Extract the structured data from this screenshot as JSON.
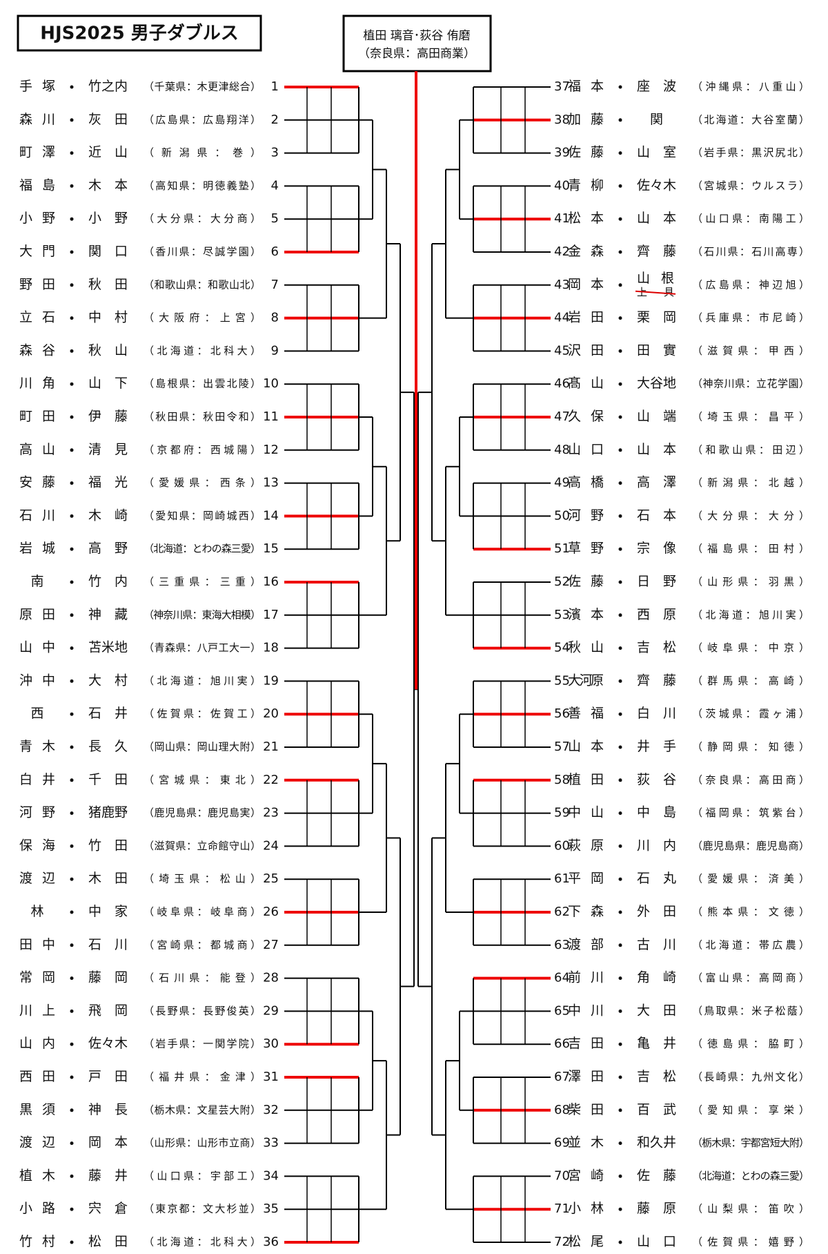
{
  "header": {
    "title": "HJS2025 男子ダブルス"
  },
  "champion": {
    "names": "植田 璃音･荻谷 侑磨",
    "affiliation": "（奈良県：高田商業）"
  },
  "entries": [
    {
      "no": 1,
      "family": "手塚",
      "given": "竹之内",
      "affiliation": "（千葉県：木更津総合）"
    },
    {
      "no": 2,
      "family": "森川",
      "given": "灰田",
      "affiliation": "（広島県：広島翔洋）"
    },
    {
      "no": 3,
      "family": "町澤",
      "given": "近山",
      "affiliation": "（新潟県：巻）"
    },
    {
      "no": 4,
      "family": "福島",
      "given": "木本",
      "affiliation": "（高知県：明徳義塾）"
    },
    {
      "no": 5,
      "family": "小野",
      "given": "小野",
      "affiliation": "（大分県：大分商）"
    },
    {
      "no": 6,
      "family": "大門",
      "given": "関口",
      "affiliation": "（香川県：尽誠学園）"
    },
    {
      "no": 7,
      "family": "野田",
      "given": "秋田",
      "affiliation": "（和歌山県：和歌山北）"
    },
    {
      "no": 8,
      "family": "立石",
      "given": "中村",
      "affiliation": "（大阪府：上宮）"
    },
    {
      "no": 9,
      "family": "森谷",
      "given": "秋山",
      "affiliation": "（北海道：北科大）"
    },
    {
      "no": 10,
      "family": "川角",
      "given": "山下",
      "affiliation": "（島根県：出雲北陵）"
    },
    {
      "no": 11,
      "family": "町田",
      "given": "伊藤",
      "affiliation": "（秋田県：秋田令和）"
    },
    {
      "no": 12,
      "family": "高山",
      "given": "清見",
      "affiliation": "（京都府：西城陽）"
    },
    {
      "no": 13,
      "family": "安藤",
      "given": "福光",
      "affiliation": "（愛媛県：西条）"
    },
    {
      "no": 14,
      "family": "石川",
      "given": "木崎",
      "affiliation": "（愛知県：岡崎城西）"
    },
    {
      "no": 15,
      "family": "岩城",
      "given": "高野",
      "affiliation": "（北海道：とわの森三愛）"
    },
    {
      "no": 16,
      "family": "南",
      "given": "竹内",
      "affiliation": "（三重県：三重）"
    },
    {
      "no": 17,
      "family": "原田",
      "given": "神藏",
      "affiliation": "（神奈川県：東海大相模）"
    },
    {
      "no": 18,
      "family": "山中",
      "given": "苫米地",
      "affiliation": "（青森県：八戸工大一）"
    },
    {
      "no": 19,
      "family": "沖中",
      "given": "大村",
      "affiliation": "（北海道：旭川実）"
    },
    {
      "no": 20,
      "family": "西",
      "given": "石井",
      "affiliation": "（佐賀県：佐賀工）"
    },
    {
      "no": 21,
      "family": "青木",
      "given": "長久",
      "affiliation": "（岡山県：岡山理大附）"
    },
    {
      "no": 22,
      "family": "白井",
      "given": "千田",
      "affiliation": "（宮城県：東北）"
    },
    {
      "no": 23,
      "family": "河野",
      "given": "猪鹿野",
      "affiliation": "（鹿児島県：鹿児島実）"
    },
    {
      "no": 24,
      "family": "保海",
      "given": "竹田",
      "affiliation": "（滋賀県：立命館守山）"
    },
    {
      "no": 25,
      "family": "渡辺",
      "given": "木田",
      "affiliation": "（埼玉県：松山）"
    },
    {
      "no": 26,
      "family": "林",
      "given": "中家",
      "affiliation": "（岐阜県：岐阜商）"
    },
    {
      "no": 27,
      "family": "田中",
      "given": "石川",
      "affiliation": "（宮崎県：都城商）"
    },
    {
      "no": 28,
      "family": "常岡",
      "given": "藤岡",
      "affiliation": "（石川県：能登）"
    },
    {
      "no": 29,
      "family": "川上",
      "given": "飛岡",
      "affiliation": "（長野県：長野俊英）"
    },
    {
      "no": 30,
      "family": "山内",
      "given": "佐々木",
      "affiliation": "（岩手県：一関学院）"
    },
    {
      "no": 31,
      "family": "西田",
      "given": "戸田",
      "affiliation": "（福井県：金津）"
    },
    {
      "no": 32,
      "family": "黒須",
      "given": "神長",
      "affiliation": "（栃木県：文星芸大附）"
    },
    {
      "no": 33,
      "family": "渡辺",
      "given": "岡本",
      "affiliation": "（山形県：山形市立商）"
    },
    {
      "no": 34,
      "family": "植木",
      "given": "藤井",
      "affiliation": "（山口県：宇部工）"
    },
    {
      "no": 35,
      "family": "小路",
      "given": "宍倉",
      "affiliation": "（東京都：文大杉並）"
    },
    {
      "no": 36,
      "family": "竹村",
      "given": "松田",
      "affiliation": "（北海道：北科大）"
    },
    {
      "no": 37,
      "family": "福本",
      "given": "座波",
      "affiliation": "（沖縄県：八重山）"
    },
    {
      "no": 38,
      "family": "加藤",
      "given": "関",
      "affiliation": "（北海道：大谷室蘭）"
    },
    {
      "no": 39,
      "family": "佐藤",
      "given": "山室",
      "affiliation": "（岩手県：黒沢尻北）"
    },
    {
      "no": 40,
      "family": "青柳",
      "given": "佐々木",
      "affiliation": "（宮城県：ウルスラ）"
    },
    {
      "no": 41,
      "family": "松本",
      "given": "山本",
      "affiliation": "（山口県：南陽工）"
    },
    {
      "no": 42,
      "family": "金森",
      "given": "齊藤",
      "affiliation": "（石川県：石川高専）"
    },
    {
      "no": 43,
      "family": "岡本",
      "given": "山根",
      "struck": "上具",
      "affiliation": "（広島県：神辺旭）"
    },
    {
      "no": 44,
      "family": "岩田",
      "given": "栗岡",
      "affiliation": "（兵庫県：市尼崎）"
    },
    {
      "no": 45,
      "family": "沢田",
      "given": "田實",
      "affiliation": "（滋賀県：甲西）"
    },
    {
      "no": 46,
      "family": "髙山",
      "given": "大谷地",
      "affiliation": "（神奈川県：立花学園）"
    },
    {
      "no": 47,
      "family": "久保",
      "given": "山端",
      "affiliation": "（埼玉県：昌平）"
    },
    {
      "no": 48,
      "family": "山口",
      "given": "山本",
      "affiliation": "（和歌山県：田辺）"
    },
    {
      "no": 49,
      "family": "高橋",
      "given": "高澤",
      "affiliation": "（新潟県：北越）"
    },
    {
      "no": 50,
      "family": "河野",
      "given": "石本",
      "affiliation": "（大分県：大分）"
    },
    {
      "no": 51,
      "family": "草野",
      "given": "宗像",
      "affiliation": "（福島県：田村）"
    },
    {
      "no": 52,
      "family": "佐藤",
      "given": "日野",
      "affiliation": "（山形県：羽黒）"
    },
    {
      "no": 53,
      "family": "濱本",
      "given": "西原",
      "affiliation": "（北海道：旭川実）"
    },
    {
      "no": 54,
      "family": "秋山",
      "given": "吉松",
      "affiliation": "（岐阜県：中京）"
    },
    {
      "no": 55,
      "family": "大河原",
      "given": "齊藤",
      "affiliation": "（群馬県：高崎）"
    },
    {
      "no": 56,
      "family": "善福",
      "given": "白川",
      "affiliation": "（茨城県：霞ヶ浦）"
    },
    {
      "no": 57,
      "family": "山本",
      "given": "井手",
      "affiliation": "（静岡県：知徳）"
    },
    {
      "no": 58,
      "family": "植田",
      "given": "荻谷",
      "affiliation": "（奈良県：高田商）"
    },
    {
      "no": 59,
      "family": "中山",
      "given": "中島",
      "affiliation": "（福岡県：筑紫台）"
    },
    {
      "no": 60,
      "family": "萩原",
      "given": "川内",
      "affiliation": "（鹿児島県：鹿児島商）"
    },
    {
      "no": 61,
      "family": "平岡",
      "given": "石丸",
      "affiliation": "（愛媛県：済美）"
    },
    {
      "no": 62,
      "family": "下森",
      "given": "外田",
      "affiliation": "（熊本県：文徳）"
    },
    {
      "no": 63,
      "family": "渡部",
      "given": "古川",
      "affiliation": "（北海道：帯広農）"
    },
    {
      "no": 64,
      "family": "前川",
      "given": "角崎",
      "affiliation": "（富山県：高岡商）"
    },
    {
      "no": 65,
      "family": "中川",
      "given": "大田",
      "affiliation": "（鳥取県：米子松蔭）"
    },
    {
      "no": 66,
      "family": "吉田",
      "given": "亀井",
      "affiliation": "（徳島県：脇町）"
    },
    {
      "no": 67,
      "family": "澤田",
      "given": "吉松",
      "affiliation": "（長崎県：九州文化）"
    },
    {
      "no": 68,
      "family": "柴田",
      "given": "百武",
      "affiliation": "（愛知県：享栄）"
    },
    {
      "no": 69,
      "family": "並木",
      "given": "和久井",
      "affiliation": "（栃木県：宇都宮短大附）"
    },
    {
      "no": 70,
      "family": "宮崎",
      "given": "佐藤",
      "affiliation": "（北海道：とわの森三愛）"
    },
    {
      "no": 71,
      "family": "小林",
      "given": "藤原",
      "affiliation": "（山梨県：笛吹）"
    },
    {
      "no": 72,
      "family": "松尾",
      "given": "山口",
      "affiliation": "（佐賀県：嬉野）"
    }
  ],
  "group_winners": [
    1,
    6,
    8,
    11,
    14,
    16,
    20,
    22,
    26,
    30,
    31,
    36,
    38,
    41,
    44,
    47,
    51,
    54,
    56,
    58,
    62,
    64,
    68,
    71
  ]
}
